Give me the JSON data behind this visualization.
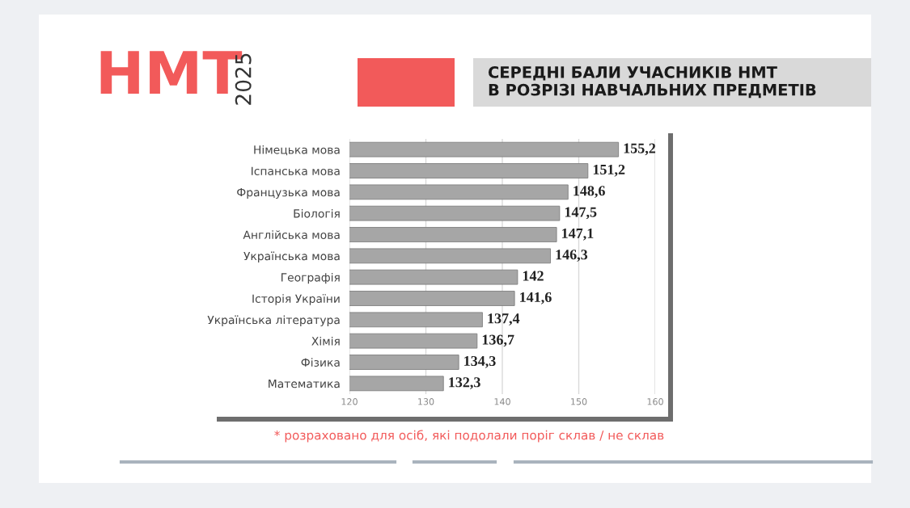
{
  "chart_data": {
    "type": "bar",
    "orientation": "horizontal",
    "title": "СЕРЕДНІ БАЛИ УЧАСНИКІВ НМТ\nВ РОЗРІЗІ НАВЧАЛЬНИХ ПРЕДМЕТІВ",
    "annotations": [
      "НМТ",
      "2025",
      "* розраховано для осіб, які подолали поріг склав / не склав"
    ],
    "categories": [
      "Німецька мова",
      "Іспанська мова",
      "Французька мова",
      "Біологія",
      "Англійська мова",
      "Українська мова",
      "Географія",
      "Історія України",
      "Українська література",
      "Хімія",
      "Фізика",
      "Математика"
    ],
    "values": [
      155.2,
      151.2,
      148.6,
      147.5,
      147.1,
      146.3,
      142,
      141.6,
      137.4,
      136.7,
      134.3,
      132.3
    ],
    "value_labels": [
      "155,2",
      "151,2",
      "148,6",
      "147,5",
      "147,1",
      "146,3",
      "142",
      "141,6",
      "137,4",
      "136,7",
      "134,3",
      "132,3"
    ],
    "color": "#a6a6a6",
    "xlim": [
      120,
      160
    ],
    "xticks": [
      120,
      130,
      140,
      150,
      160
    ],
    "grid": "x",
    "legend": false
  }
}
